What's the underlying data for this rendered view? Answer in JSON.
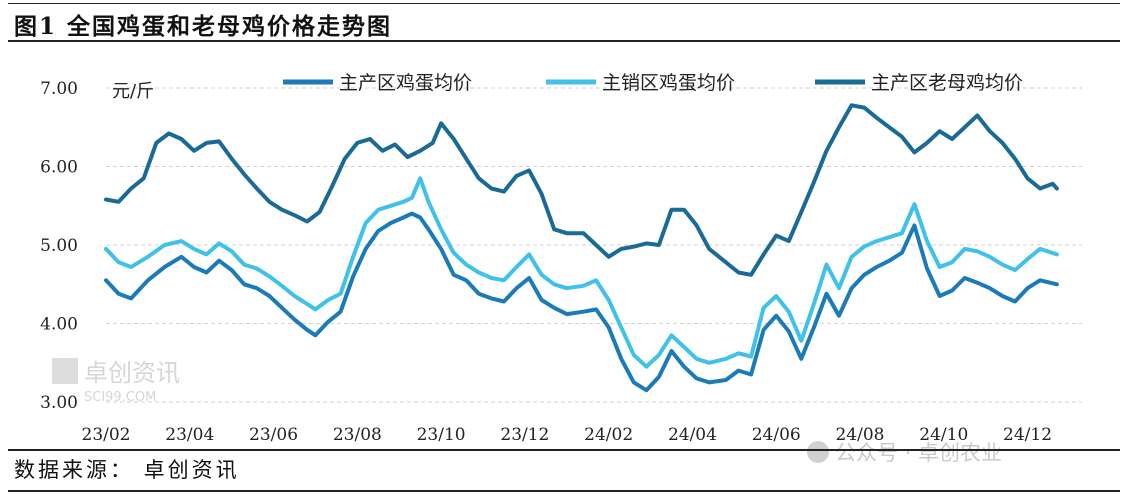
{
  "figure": {
    "title": "图1  全国鸡蛋和老母鸡价格走势图",
    "source": "数据来源：  卓创资讯",
    "unit": "元/斤",
    "watermark_brand": "卓创资讯",
    "watermark_domain": "SCI99.COM",
    "wechat_watermark": "公众号 · 卓创农业"
  },
  "chart_data": {
    "type": "line",
    "title": "图1  全国鸡蛋和老母鸡价格走势图",
    "ylabel": "元/斤",
    "xlabel": "",
    "ylim": [
      3.0,
      7.0
    ],
    "yticks": [
      "7.00",
      "6.00",
      "5.00",
      "4.00",
      "3.00"
    ],
    "ytick_values": [
      7,
      6,
      5,
      4,
      3
    ],
    "xlim": [
      0,
      23.3
    ],
    "xticks": [
      "23/02",
      "23/04",
      "23/06",
      "23/08",
      "23/10",
      "23/12",
      "24/02",
      "24/04",
      "24/06",
      "24/08",
      "24/10",
      "24/12"
    ],
    "xtick_positions": [
      0,
      2,
      4,
      6,
      8,
      10,
      12,
      14,
      16,
      18,
      20,
      22
    ],
    "grid": "horizontal dashed",
    "legend_position": "top",
    "series": [
      {
        "name": "主产区鸡蛋均价",
        "color": "#1b7bb8",
        "points": [
          [
            0,
            4.55
          ],
          [
            0.3,
            4.38
          ],
          [
            0.6,
            4.32
          ],
          [
            1.0,
            4.55
          ],
          [
            1.4,
            4.72
          ],
          [
            1.8,
            4.85
          ],
          [
            2.1,
            4.72
          ],
          [
            2.4,
            4.65
          ],
          [
            2.7,
            4.8
          ],
          [
            3.0,
            4.68
          ],
          [
            3.3,
            4.5
          ],
          [
            3.6,
            4.45
          ],
          [
            3.9,
            4.35
          ],
          [
            4.2,
            4.2
          ],
          [
            4.5,
            4.05
          ],
          [
            4.8,
            3.92
          ],
          [
            5.0,
            3.85
          ],
          [
            5.3,
            4.02
          ],
          [
            5.6,
            4.15
          ],
          [
            5.9,
            4.6
          ],
          [
            6.2,
            4.95
          ],
          [
            6.5,
            5.18
          ],
          [
            6.8,
            5.28
          ],
          [
            7.1,
            5.35
          ],
          [
            7.3,
            5.4
          ],
          [
            7.5,
            5.35
          ],
          [
            7.7,
            5.2
          ],
          [
            8.0,
            4.95
          ],
          [
            8.3,
            4.62
          ],
          [
            8.6,
            4.55
          ],
          [
            8.9,
            4.38
          ],
          [
            9.2,
            4.32
          ],
          [
            9.5,
            4.28
          ],
          [
            9.8,
            4.45
          ],
          [
            10.1,
            4.58
          ],
          [
            10.4,
            4.3
          ],
          [
            10.7,
            4.2
          ],
          [
            11.0,
            4.12
          ],
          [
            11.4,
            4.15
          ],
          [
            11.7,
            4.18
          ],
          [
            12.0,
            3.95
          ],
          [
            12.3,
            3.55
          ],
          [
            12.6,
            3.25
          ],
          [
            12.9,
            3.15
          ],
          [
            13.2,
            3.32
          ],
          [
            13.5,
            3.65
          ],
          [
            13.8,
            3.45
          ],
          [
            14.1,
            3.3
          ],
          [
            14.4,
            3.25
          ],
          [
            14.8,
            3.28
          ],
          [
            15.1,
            3.4
          ],
          [
            15.4,
            3.35
          ],
          [
            15.7,
            3.92
          ],
          [
            16.0,
            4.1
          ],
          [
            16.3,
            3.9
          ],
          [
            16.6,
            3.55
          ],
          [
            16.9,
            3.95
          ],
          [
            17.2,
            4.38
          ],
          [
            17.5,
            4.1
          ],
          [
            17.8,
            4.45
          ],
          [
            18.1,
            4.62
          ],
          [
            18.4,
            4.72
          ],
          [
            18.7,
            4.8
          ],
          [
            19.0,
            4.9
          ],
          [
            19.3,
            5.25
          ],
          [
            19.6,
            4.7
          ],
          [
            19.9,
            4.35
          ],
          [
            20.2,
            4.42
          ],
          [
            20.5,
            4.58
          ],
          [
            20.8,
            4.52
          ],
          [
            21.1,
            4.45
          ],
          [
            21.4,
            4.35
          ],
          [
            21.7,
            4.28
          ],
          [
            22.0,
            4.45
          ],
          [
            22.3,
            4.55
          ],
          [
            22.7,
            4.5
          ]
        ]
      },
      {
        "name": "主销区鸡蛋均价",
        "color": "#3fc1ea",
        "points": [
          [
            0,
            4.95
          ],
          [
            0.3,
            4.78
          ],
          [
            0.6,
            4.72
          ],
          [
            1.0,
            4.85
          ],
          [
            1.4,
            5.0
          ],
          [
            1.8,
            5.05
          ],
          [
            2.1,
            4.95
          ],
          [
            2.4,
            4.88
          ],
          [
            2.7,
            5.02
          ],
          [
            3.0,
            4.92
          ],
          [
            3.3,
            4.75
          ],
          [
            3.6,
            4.7
          ],
          [
            3.9,
            4.6
          ],
          [
            4.2,
            4.48
          ],
          [
            4.5,
            4.35
          ],
          [
            4.8,
            4.25
          ],
          [
            5.0,
            4.18
          ],
          [
            5.3,
            4.3
          ],
          [
            5.6,
            4.38
          ],
          [
            5.9,
            4.85
          ],
          [
            6.2,
            5.28
          ],
          [
            6.5,
            5.45
          ],
          [
            6.8,
            5.5
          ],
          [
            7.1,
            5.55
          ],
          [
            7.3,
            5.6
          ],
          [
            7.5,
            5.85
          ],
          [
            7.7,
            5.55
          ],
          [
            8.0,
            5.2
          ],
          [
            8.3,
            4.9
          ],
          [
            8.6,
            4.75
          ],
          [
            8.9,
            4.65
          ],
          [
            9.2,
            4.58
          ],
          [
            9.5,
            4.55
          ],
          [
            9.8,
            4.72
          ],
          [
            10.1,
            4.88
          ],
          [
            10.4,
            4.62
          ],
          [
            10.7,
            4.5
          ],
          [
            11.0,
            4.45
          ],
          [
            11.4,
            4.48
          ],
          [
            11.7,
            4.55
          ],
          [
            12.0,
            4.3
          ],
          [
            12.3,
            3.95
          ],
          [
            12.6,
            3.6
          ],
          [
            12.9,
            3.45
          ],
          [
            13.2,
            3.6
          ],
          [
            13.5,
            3.85
          ],
          [
            13.8,
            3.7
          ],
          [
            14.1,
            3.55
          ],
          [
            14.4,
            3.5
          ],
          [
            14.8,
            3.55
          ],
          [
            15.1,
            3.62
          ],
          [
            15.4,
            3.58
          ],
          [
            15.7,
            4.2
          ],
          [
            16.0,
            4.35
          ],
          [
            16.3,
            4.15
          ],
          [
            16.6,
            3.78
          ],
          [
            16.9,
            4.25
          ],
          [
            17.2,
            4.75
          ],
          [
            17.5,
            4.45
          ],
          [
            17.8,
            4.85
          ],
          [
            18.1,
            4.98
          ],
          [
            18.4,
            5.05
          ],
          [
            18.7,
            5.1
          ],
          [
            19.0,
            5.15
          ],
          [
            19.3,
            5.52
          ],
          [
            19.6,
            5.05
          ],
          [
            19.9,
            4.72
          ],
          [
            20.2,
            4.78
          ],
          [
            20.5,
            4.95
          ],
          [
            20.8,
            4.92
          ],
          [
            21.1,
            4.85
          ],
          [
            21.4,
            4.75
          ],
          [
            21.7,
            4.68
          ],
          [
            22.0,
            4.82
          ],
          [
            22.3,
            4.95
          ],
          [
            22.7,
            4.88
          ]
        ]
      },
      {
        "name": "主产区老母鸡均价",
        "color": "#1a6a96",
        "points": [
          [
            0,
            5.58
          ],
          [
            0.3,
            5.55
          ],
          [
            0.6,
            5.72
          ],
          [
            0.9,
            5.85
          ],
          [
            1.2,
            6.3
          ],
          [
            1.5,
            6.42
          ],
          [
            1.8,
            6.35
          ],
          [
            2.1,
            6.2
          ],
          [
            2.4,
            6.3
          ],
          [
            2.7,
            6.32
          ],
          [
            3.0,
            6.1
          ],
          [
            3.3,
            5.9
          ],
          [
            3.6,
            5.72
          ],
          [
            3.9,
            5.55
          ],
          [
            4.2,
            5.45
          ],
          [
            4.5,
            5.38
          ],
          [
            4.8,
            5.3
          ],
          [
            5.1,
            5.42
          ],
          [
            5.4,
            5.75
          ],
          [
            5.7,
            6.1
          ],
          [
            6.0,
            6.3
          ],
          [
            6.3,
            6.35
          ],
          [
            6.6,
            6.2
          ],
          [
            6.9,
            6.28
          ],
          [
            7.2,
            6.12
          ],
          [
            7.5,
            6.2
          ],
          [
            7.8,
            6.3
          ],
          [
            8.0,
            6.55
          ],
          [
            8.3,
            6.35
          ],
          [
            8.6,
            6.1
          ],
          [
            8.9,
            5.85
          ],
          [
            9.2,
            5.72
          ],
          [
            9.5,
            5.68
          ],
          [
            9.8,
            5.88
          ],
          [
            10.1,
            5.95
          ],
          [
            10.4,
            5.65
          ],
          [
            10.7,
            5.2
          ],
          [
            11.0,
            5.15
          ],
          [
            11.4,
            5.15
          ],
          [
            11.7,
            5.0
          ],
          [
            12.0,
            4.85
          ],
          [
            12.3,
            4.95
          ],
          [
            12.6,
            4.98
          ],
          [
            12.9,
            5.02
          ],
          [
            13.2,
            5.0
          ],
          [
            13.5,
            5.45
          ],
          [
            13.8,
            5.45
          ],
          [
            14.1,
            5.25
          ],
          [
            14.4,
            4.95
          ],
          [
            14.8,
            4.78
          ],
          [
            15.1,
            4.65
          ],
          [
            15.4,
            4.62
          ],
          [
            15.7,
            4.88
          ],
          [
            16.0,
            5.12
          ],
          [
            16.3,
            5.05
          ],
          [
            16.6,
            5.42
          ],
          [
            16.9,
            5.8
          ],
          [
            17.2,
            6.2
          ],
          [
            17.5,
            6.5
          ],
          [
            17.8,
            6.78
          ],
          [
            18.1,
            6.75
          ],
          [
            18.4,
            6.62
          ],
          [
            18.7,
            6.5
          ],
          [
            19.0,
            6.38
          ],
          [
            19.3,
            6.18
          ],
          [
            19.6,
            6.3
          ],
          [
            19.9,
            6.45
          ],
          [
            20.2,
            6.35
          ],
          [
            20.5,
            6.5
          ],
          [
            20.8,
            6.65
          ],
          [
            21.1,
            6.45
          ],
          [
            21.4,
            6.3
          ],
          [
            21.7,
            6.1
          ],
          [
            22.0,
            5.85
          ],
          [
            22.3,
            5.72
          ],
          [
            22.6,
            5.78
          ],
          [
            22.7,
            5.72
          ]
        ]
      }
    ]
  }
}
